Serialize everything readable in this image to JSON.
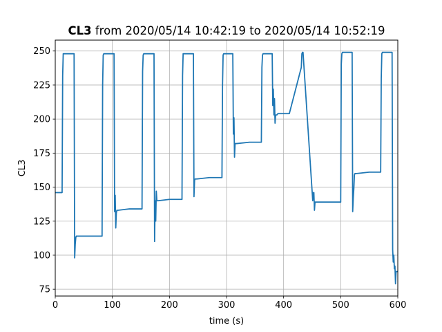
{
  "chart_data": {
    "type": "line",
    "title_bold": "CL3",
    "title_rest": " from 2020/05/14 10:42:19 to 2020/05/14 10:52:19",
    "xlabel": "time (s)",
    "ylabel": "CL3",
    "xlim": [
      0,
      600
    ],
    "ylim": [
      70,
      258
    ],
    "xticks": [
      0,
      100,
      200,
      300,
      400,
      500,
      600
    ],
    "yticks": [
      75,
      100,
      125,
      150,
      175,
      200,
      225,
      250
    ],
    "grid": true,
    "colors": {
      "line": "#1f77b4",
      "grid": "#b0b0b0",
      "axes": "#000000"
    },
    "series": [
      {
        "x": [
          0,
          12,
          13,
          14,
          33,
          34,
          35,
          36,
          37,
          40,
          60,
          82,
          83,
          84,
          85,
          103,
          104,
          105,
          106,
          107,
          108,
          110,
          130,
          152,
          153,
          154,
          155,
          173,
          174,
          175,
          176,
          177,
          178,
          180,
          200,
          222,
          223,
          224,
          225,
          242,
          243,
          244,
          245,
          246,
          248,
          270,
          292,
          293,
          294,
          295,
          311,
          312,
          313,
          314,
          315,
          318,
          340,
          361,
          362,
          363,
          364,
          380,
          381,
          382,
          383,
          384,
          385,
          386,
          387,
          388,
          390,
          410,
          431,
          432,
          433,
          434,
          451,
          452,
          453,
          454,
          455,
          456,
          458,
          480,
          500,
          501,
          502,
          503,
          520,
          521,
          522,
          523,
          524,
          525,
          528,
          550,
          570,
          571,
          572,
          573,
          590,
          591,
          592,
          593,
          594,
          595,
          596,
          597,
          600
        ],
        "y": [
          146,
          146,
          232,
          248,
          248,
          98,
          108,
          113,
          114,
          114,
          114,
          114,
          225,
          247,
          248,
          248,
          132,
          144,
          120,
          131,
          133,
          133,
          134,
          134,
          235,
          247,
          248,
          248,
          110,
          140,
          125,
          147,
          140,
          140,
          141,
          141,
          232,
          248,
          248,
          248,
          143,
          155,
          156,
          156,
          156,
          157,
          157,
          225,
          247,
          248,
          248,
          189,
          201,
          172,
          182,
          182,
          183,
          183,
          238,
          247,
          248,
          248,
          210,
          222,
          203,
          215,
          197,
          203,
          203,
          203,
          204,
          204,
          238,
          248,
          249,
          249,
          140,
          146,
          146,
          133,
          139,
          139,
          139,
          139,
          139,
          240,
          248,
          249,
          249,
          132,
          142,
          149,
          159,
          160,
          160,
          161,
          161,
          230,
          248,
          249,
          249,
          104,
          95,
          100,
          90,
          92,
          79,
          88,
          88
        ]
      }
    ]
  }
}
